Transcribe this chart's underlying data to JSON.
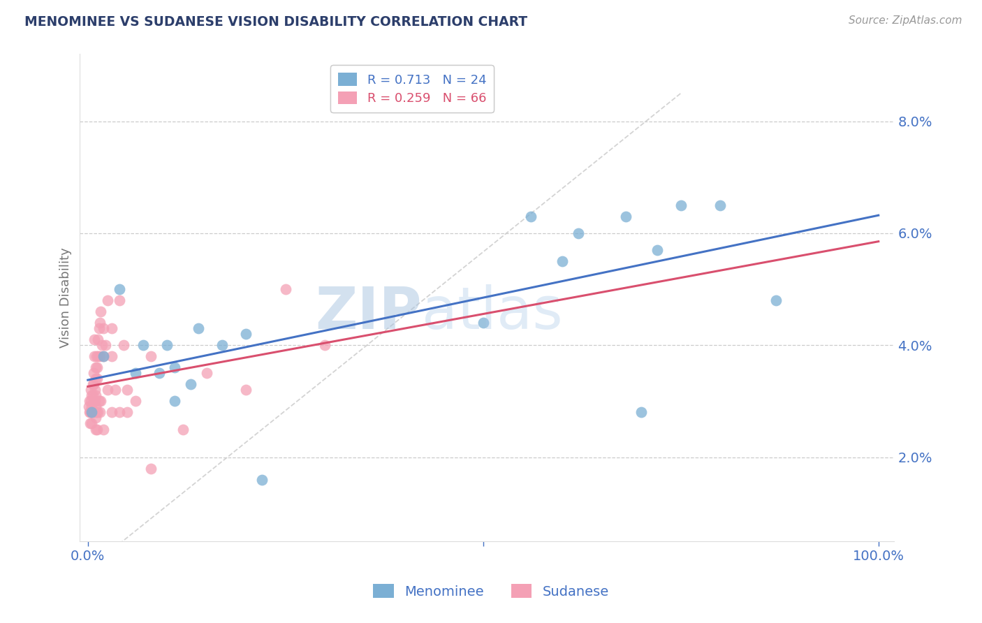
{
  "title": "MENOMINEE VS SUDANESE VISION DISABILITY CORRELATION CHART",
  "source": "Source: ZipAtlas.com",
  "ylabel": "Vision Disability",
  "legend_label1": "Menominee",
  "legend_label2": "Sudanese",
  "R1": 0.713,
  "N1": 24,
  "R2": 0.259,
  "N2": 66,
  "color1": "#7bafd4",
  "color2": "#f4a0b5",
  "line_color1": "#4472c4",
  "line_color2": "#d94f6e",
  "xlim": [
    -0.01,
    1.02
  ],
  "ylim": [
    0.005,
    0.092
  ],
  "yticks": [
    0.02,
    0.04,
    0.06,
    0.08
  ],
  "ytick_labels": [
    "2.0%",
    "4.0%",
    "6.0%",
    "8.0%"
  ],
  "xticks": [
    0.0,
    0.5,
    1.0
  ],
  "xtick_labels": [
    "0.0%",
    "",
    "100.0%"
  ],
  "watermark_zip": "ZIP",
  "watermark_atlas": "atlas",
  "menominee_x": [
    0.005,
    0.02,
    0.04,
    0.06,
    0.07,
    0.09,
    0.1,
    0.11,
    0.11,
    0.13,
    0.14,
    0.17,
    0.2,
    0.22,
    0.5,
    0.56,
    0.6,
    0.62,
    0.68,
    0.7,
    0.72,
    0.75,
    0.8,
    0.87
  ],
  "menominee_y": [
    0.028,
    0.038,
    0.05,
    0.035,
    0.04,
    0.035,
    0.04,
    0.03,
    0.036,
    0.033,
    0.043,
    0.04,
    0.042,
    0.016,
    0.044,
    0.063,
    0.055,
    0.06,
    0.063,
    0.028,
    0.057,
    0.065,
    0.065,
    0.048
  ],
  "sudanese_x": [
    0.001,
    0.002,
    0.002,
    0.003,
    0.003,
    0.004,
    0.004,
    0.004,
    0.005,
    0.005,
    0.005,
    0.006,
    0.006,
    0.007,
    0.007,
    0.007,
    0.008,
    0.008,
    0.008,
    0.009,
    0.009,
    0.01,
    0.01,
    0.01,
    0.01,
    0.01,
    0.01,
    0.011,
    0.011,
    0.012,
    0.012,
    0.012,
    0.013,
    0.013,
    0.013,
    0.014,
    0.014,
    0.015,
    0.015,
    0.015,
    0.016,
    0.016,
    0.018,
    0.02,
    0.02,
    0.02,
    0.022,
    0.025,
    0.025,
    0.03,
    0.03,
    0.03,
    0.035,
    0.04,
    0.04,
    0.045,
    0.05,
    0.05,
    0.06,
    0.08,
    0.08,
    0.12,
    0.15,
    0.2,
    0.25,
    0.3
  ],
  "sudanese_y": [
    0.029,
    0.03,
    0.028,
    0.028,
    0.026,
    0.032,
    0.03,
    0.028,
    0.031,
    0.029,
    0.026,
    0.033,
    0.031,
    0.035,
    0.033,
    0.03,
    0.041,
    0.038,
    0.028,
    0.032,
    0.03,
    0.036,
    0.034,
    0.031,
    0.029,
    0.027,
    0.025,
    0.038,
    0.028,
    0.036,
    0.034,
    0.025,
    0.041,
    0.038,
    0.028,
    0.043,
    0.03,
    0.044,
    0.038,
    0.028,
    0.046,
    0.03,
    0.04,
    0.043,
    0.038,
    0.025,
    0.04,
    0.048,
    0.032,
    0.043,
    0.038,
    0.028,
    0.032,
    0.048,
    0.028,
    0.04,
    0.032,
    0.028,
    0.03,
    0.038,
    0.018,
    0.025,
    0.035,
    0.032,
    0.05,
    0.04
  ],
  "grid_color": "#cccccc",
  "background_color": "#ffffff",
  "title_color": "#2c3e6b",
  "axis_color": "#4472c4",
  "ylabel_color": "#777777",
  "ref_line_color": "#cccccc"
}
